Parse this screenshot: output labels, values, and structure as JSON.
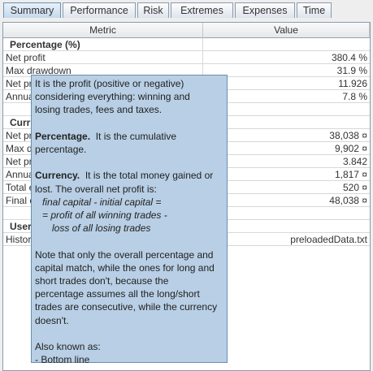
{
  "tabs": [
    "Summary",
    "Performance",
    "Risk",
    "Extremes",
    "Expenses",
    "Time"
  ],
  "table": {
    "headers": [
      "Metric",
      "Value"
    ],
    "sections": [
      {
        "title": "Percentage (%)",
        "rows": [
          [
            "Net profit",
            "380.4 %"
          ],
          [
            "Max drawdown",
            "31.9 %"
          ],
          [
            "Net pr",
            "11.926"
          ],
          [
            "Annua",
            "7.8 %"
          ]
        ]
      },
      {
        "title": "Curr",
        "rows": [
          [
            "Net pr",
            "38,038 ¤"
          ],
          [
            "Max dr",
            "9,902 ¤"
          ],
          [
            "Net pr",
            "3.842"
          ],
          [
            "Annua",
            "1,817 ¤"
          ],
          [
            "Total e",
            "520 ¤"
          ],
          [
            "Final c",
            "48,038 ¤"
          ]
        ]
      },
      {
        "title": "User",
        "rows": [
          [
            "Histor",
            "preloadedData.txt"
          ]
        ]
      }
    ]
  },
  "tooltip": {
    "blocks": [
      {
        "lines": [
          "It is the profit (positive or negative)",
          "considering everything: winning and",
          "losing trades, fees and taxes."
        ]
      },
      {
        "lead": "Percentage.",
        "lines": [
          "It is the cumulative",
          "percentage."
        ]
      },
      {
        "lead": "Currency.",
        "lines": [
          "It is the total money gained or",
          "lost. The overall net profit is:"
        ],
        "formula": [
          "final capital - initial capital =",
          "= profit of all winning trades -",
          "loss of all losing trades"
        ]
      },
      {
        "lines": [
          "Note that only the overall percentage and",
          "capital match, while the ones for long and",
          "short trades don't, because the",
          "percentage assumes all the long/short",
          "trades are consecutive, while the currency",
          "doesn't."
        ]
      },
      {
        "lines": [
          "Also known as:",
          "- Bottom line"
        ]
      }
    ]
  }
}
